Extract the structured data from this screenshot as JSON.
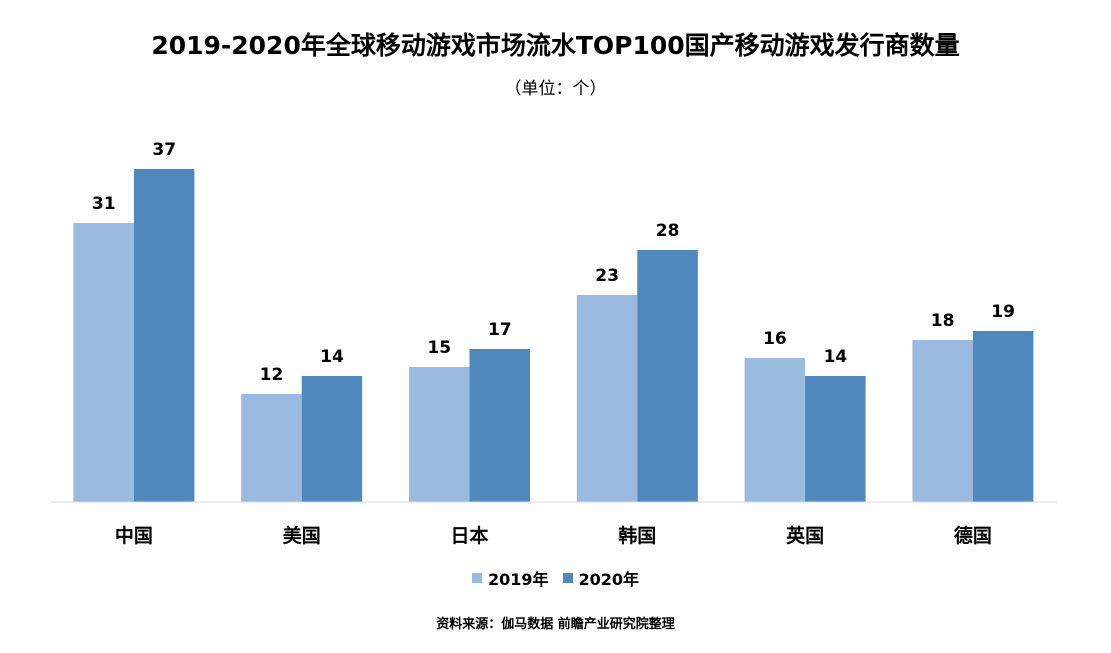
{
  "chart_data": {
    "type": "bar",
    "title": "2019-2020年全球移动游戏市场流水TOP100国产移动游戏发行商数量",
    "subtitle": "（单位：个）",
    "categories": [
      "中国",
      "美国",
      "日本",
      "韩国",
      "英国",
      "德国"
    ],
    "series": [
      {
        "name": "2019年",
        "values": [
          31,
          12,
          15,
          23,
          16,
          18
        ],
        "color": "#9bbae0"
      },
      {
        "name": "2020年",
        "values": [
          37,
          14,
          17,
          28,
          14,
          19
        ],
        "color": "#4f88bd"
      }
    ],
    "ylim": [
      0,
      37
    ],
    "grid": false,
    "legend_position": "bottom-center",
    "source": "资料来源：伽马数据 前瞻产业研究院整理"
  }
}
